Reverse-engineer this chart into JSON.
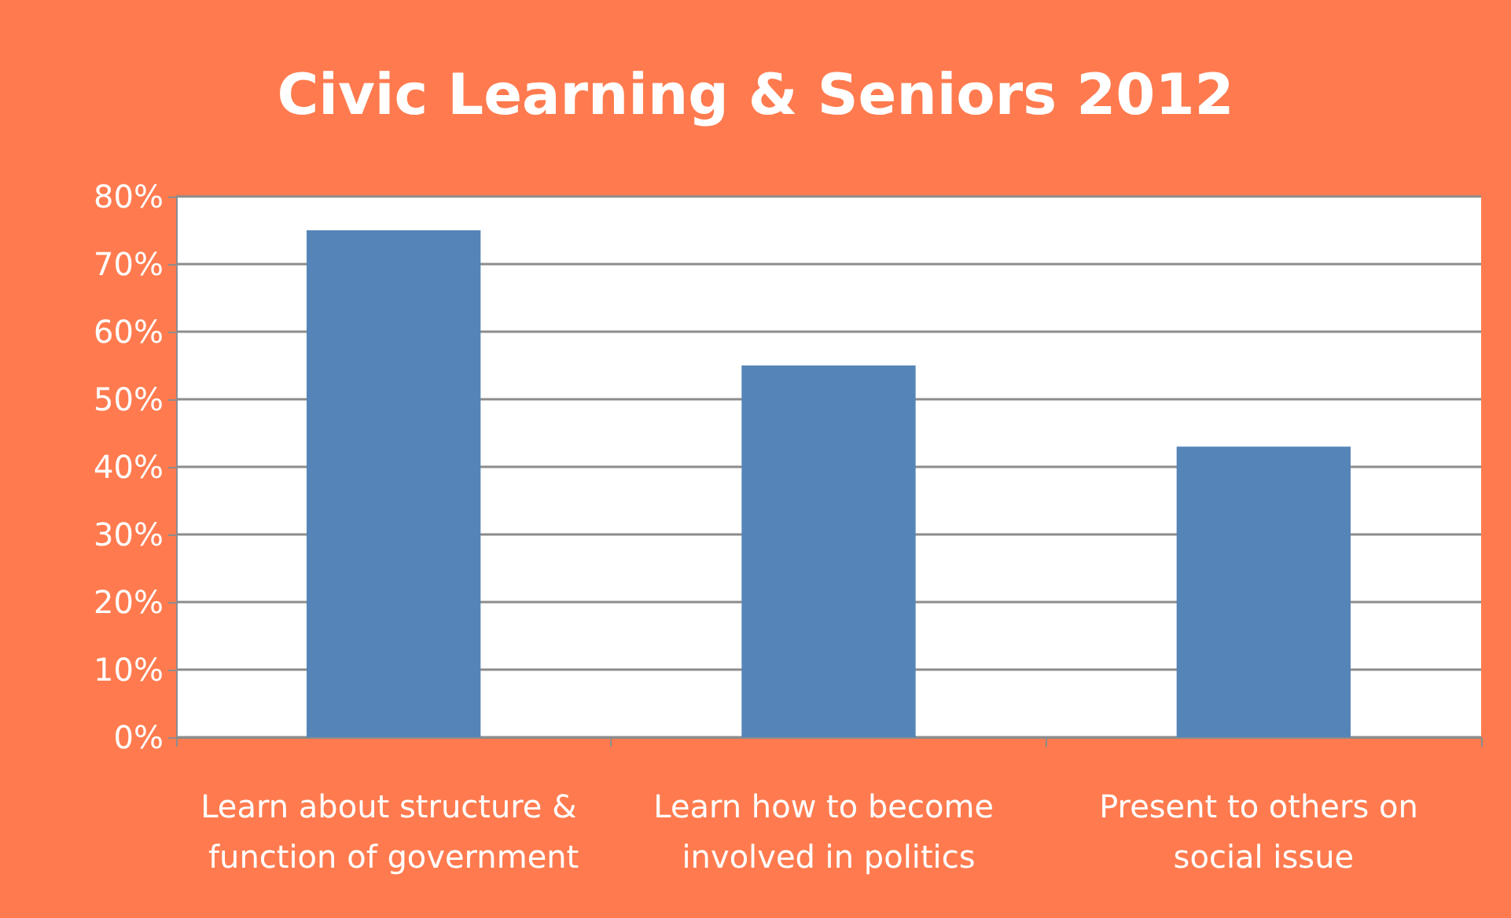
{
  "chart_data": {
    "type": "bar",
    "title": "Civic Learning & Seniors 2012",
    "categories": [
      "Learn about structure & function of government",
      "Learn how to become involved in politics",
      "Present to others on social issue"
    ],
    "values": [
      75,
      55,
      43
    ],
    "color": "#5585b8",
    "ylim": [
      0,
      80
    ],
    "yticks": [
      {
        "value": 0,
        "label": "0%"
      },
      {
        "value": 10,
        "label": "10%"
      },
      {
        "value": 20,
        "label": "20%"
      },
      {
        "value": 30,
        "label": "30%"
      },
      {
        "value": 40,
        "label": "40%"
      },
      {
        "value": 50,
        "label": "50%"
      },
      {
        "value": 60,
        "label": "60%"
      },
      {
        "value": 70,
        "label": "70%"
      },
      {
        "value": 80,
        "label": "80%"
      }
    ],
    "grid": "y"
  }
}
